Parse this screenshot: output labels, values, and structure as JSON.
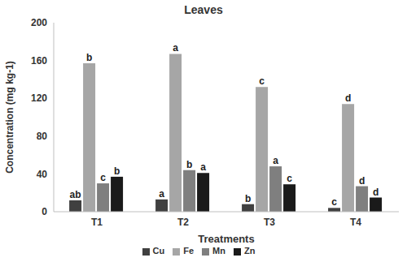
{
  "chart_data": {
    "type": "bar",
    "title": "Leaves",
    "x_label": "Treatments",
    "y_label": "Concentration (mg kg-1)",
    "categories": [
      "T1",
      "T2",
      "T3",
      "T4"
    ],
    "series": [
      {
        "name": "Cu",
        "color": "#404040",
        "values": [
          12,
          13,
          8,
          4
        ],
        "annotations": [
          "ab",
          "a",
          "b",
          "c"
        ]
      },
      {
        "name": "Fe",
        "color": "#a6a6a6",
        "values": [
          157,
          167,
          132,
          114
        ],
        "annotations": [
          "b",
          "a",
          "c",
          "d"
        ]
      },
      {
        "name": "Mn",
        "color": "#7f7f7f",
        "values": [
          30,
          44,
          48,
          27
        ],
        "annotations": [
          "c",
          "b",
          "a",
          "d"
        ]
      },
      {
        "name": "Zn",
        "color": "#1a1a1a",
        "values": [
          37,
          41,
          29,
          15
        ],
        "annotations": [
          "b",
          "a",
          "c",
          "d"
        ]
      }
    ],
    "ylim": [
      0,
      200
    ],
    "yticks": [
      0,
      40,
      80,
      120,
      160,
      200
    ],
    "grid": false,
    "legend": "bottom"
  }
}
